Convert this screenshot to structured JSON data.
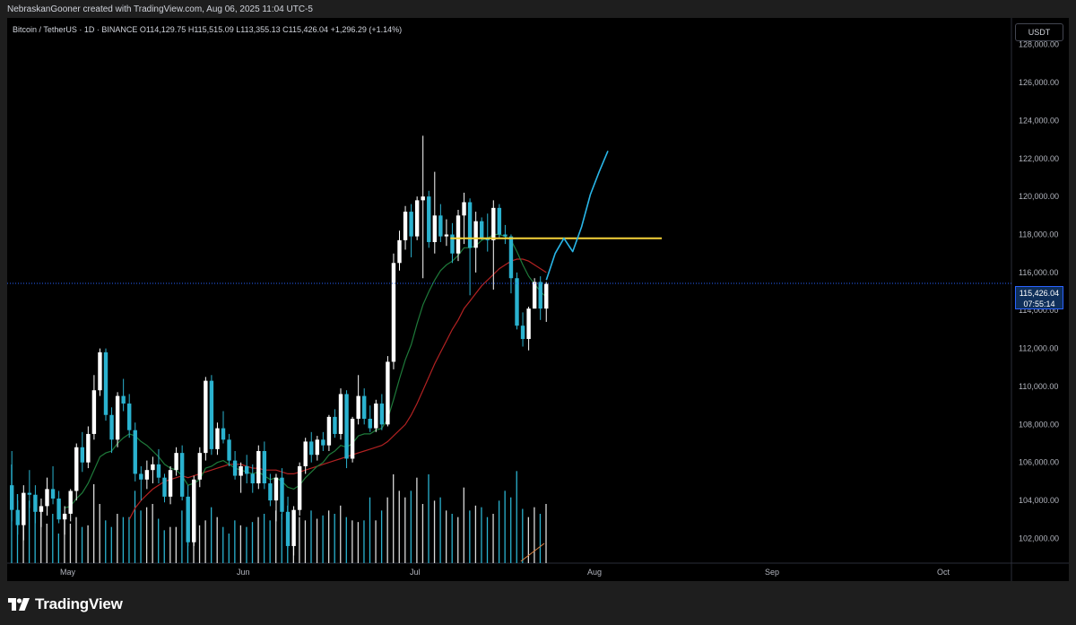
{
  "caption": "NebraskanGooner created with TradingView.com, Aug 06, 2025 11:04 UTC-5",
  "symbol_bar": {
    "title": "Bitcoin / TetherUS · 1D · BINANCE",
    "open_label": "O",
    "open": "114,129.75",
    "high_label": "H",
    "high": "115,515.09",
    "low_label": "L",
    "low": "113,355.13",
    "close_label": "C",
    "close": "115,426.04",
    "change": "+1,296.29 (+1.14%)"
  },
  "currency_button": "USDT",
  "current_price": {
    "price": "115,426.04",
    "countdown": "07:55:14"
  },
  "branding": "TradingView",
  "colors": {
    "up": "#ffffff",
    "down": "#2ab2cf",
    "ma_fast": "#1e7a3a",
    "ma_slow": "#b22222",
    "level": "#f5d33a",
    "projection": "#29b6e8",
    "price_line": "#2962ff",
    "volume_up": "#d9d9d9",
    "volume_down": "#2ab2cf"
  },
  "chart_data": {
    "type": "candlestick",
    "price_axis": {
      "ylim": [
        100700,
        129400
      ],
      "ticks": [
        "128,000.00",
        "126,000.00",
        "124,000.00",
        "122,000.00",
        "120,000.00",
        "118,000.00",
        "116,000.00",
        "114,000.00",
        "112,000.00",
        "110,000.00",
        "108,000.00",
        "106,000.00",
        "104,000.00",
        "102,000.00"
      ]
    },
    "time_axis": {
      "labels": [
        "May",
        "Jun",
        "Jul",
        "Aug",
        "Sep",
        "Oct"
      ]
    },
    "candles": [
      [
        104800,
        106600,
        102900,
        103500
      ],
      [
        103500,
        104000,
        102200,
        102700
      ],
      [
        102700,
        104800,
        101900,
        104400
      ],
      [
        104400,
        105600,
        103600,
        104300
      ],
      [
        104300,
        104800,
        102800,
        103400
      ],
      [
        103400,
        104100,
        102600,
        103700
      ],
      [
        103700,
        105200,
        103200,
        104600
      ],
      [
        104600,
        105800,
        103800,
        104100
      ],
      [
        104100,
        104500,
        102800,
        103000
      ],
      [
        103000,
        103700,
        102200,
        103300
      ],
      [
        103300,
        104600,
        102900,
        104500
      ],
      [
        104500,
        107000,
        104000,
        106800
      ],
      [
        106800,
        107600,
        105500,
        106000
      ],
      [
        106000,
        107900,
        105700,
        107500
      ],
      [
        107500,
        110600,
        107200,
        109800
      ],
      [
        109800,
        112000,
        109500,
        111800
      ],
      [
        111800,
        112000,
        108200,
        108500
      ],
      [
        108500,
        108900,
        106500,
        107200
      ],
      [
        107200,
        109700,
        106800,
        109500
      ],
      [
        109500,
        110400,
        108700,
        109100
      ],
      [
        109100,
        109600,
        107300,
        107700
      ],
      [
        107700,
        108100,
        105000,
        105400
      ],
      [
        105400,
        105800,
        104000,
        105100
      ],
      [
        105100,
        106100,
        104600,
        105600
      ],
      [
        105600,
        106300,
        104900,
        105900
      ],
      [
        105900,
        106700,
        104900,
        105200
      ],
      [
        105200,
        105400,
        103900,
        104200
      ],
      [
        104200,
        105800,
        103800,
        105600
      ],
      [
        105600,
        106800,
        105300,
        106500
      ],
      [
        106500,
        106900,
        104000,
        104200
      ],
      [
        104200,
        104800,
        101600,
        101800
      ],
      [
        101800,
        105300,
        101600,
        105100
      ],
      [
        105100,
        106800,
        104700,
        106500
      ],
      [
        106500,
        110500,
        106100,
        110300
      ],
      [
        110300,
        110600,
        106400,
        106700
      ],
      [
        106700,
        108100,
        106400,
        107800
      ],
      [
        107800,
        108700,
        107000,
        107200
      ],
      [
        107200,
        107500,
        105800,
        106100
      ],
      [
        106100,
        106600,
        105100,
        105300
      ],
      [
        105300,
        106000,
        104400,
        105800
      ],
      [
        105800,
        106400,
        104900,
        105400
      ],
      [
        105400,
        105900,
        104400,
        104900
      ],
      [
        104900,
        106900,
        104600,
        106600
      ],
      [
        106600,
        107100,
        104600,
        104900
      ],
      [
        104900,
        105400,
        103700,
        104000
      ],
      [
        104000,
        105400,
        102900,
        105200
      ],
      [
        105200,
        105700,
        103000,
        103400
      ],
      [
        103400,
        104200,
        101500,
        101600
      ],
      [
        101600,
        103700,
        101100,
        103500
      ],
      [
        103500,
        106000,
        103200,
        105800
      ],
      [
        105800,
        107300,
        105400,
        107100
      ],
      [
        107100,
        107600,
        106000,
        106400
      ],
      [
        106400,
        107400,
        106100,
        107200
      ],
      [
        107200,
        107600,
        106600,
        106900
      ],
      [
        106900,
        108500,
        106600,
        108400
      ],
      [
        108400,
        108800,
        107300,
        107500
      ],
      [
        107500,
        109900,
        107200,
        109600
      ],
      [
        109600,
        109800,
        105700,
        106200
      ],
      [
        106200,
        108400,
        106000,
        108300
      ],
      [
        108300,
        110600,
        108000,
        109500
      ],
      [
        109500,
        109900,
        108000,
        108300
      ],
      [
        108300,
        109000,
        107600,
        107800
      ],
      [
        107800,
        109300,
        107600,
        109100
      ],
      [
        109100,
        109600,
        107700,
        108000
      ],
      [
        108000,
        111600,
        107900,
        111300
      ],
      [
        111300,
        117000,
        110900,
        116500
      ],
      [
        116500,
        118200,
        116100,
        117700
      ],
      [
        117700,
        119500,
        117200,
        119200
      ],
      [
        119200,
        119600,
        116800,
        117900
      ],
      [
        117900,
        120000,
        117700,
        119800
      ],
      [
        119800,
        123200,
        115700,
        120000
      ],
      [
        120000,
        120300,
        117300,
        117600
      ],
      [
        117600,
        121300,
        117000,
        119000
      ],
      [
        119000,
        119600,
        117600,
        117900
      ],
      [
        117900,
        118800,
        117400,
        118000
      ],
      [
        118000,
        118600,
        116500,
        117000
      ],
      [
        117000,
        119300,
        116600,
        119000
      ],
      [
        119000,
        120200,
        117500,
        119700
      ],
      [
        119700,
        119900,
        114800,
        117300
      ],
      [
        117300,
        119200,
        116000,
        118700
      ],
      [
        118700,
        118900,
        117700,
        117800
      ],
      [
        117800,
        119100,
        117100,
        117700
      ],
      [
        117700,
        119800,
        115100,
        119400
      ],
      [
        119400,
        119600,
        117800,
        118000
      ],
      [
        118000,
        118500,
        117500,
        117900
      ],
      [
        117900,
        118000,
        114900,
        115700
      ],
      [
        115700,
        116000,
        113000,
        113200
      ],
      [
        113200,
        113900,
        112100,
        112500
      ],
      [
        112500,
        114200,
        111900,
        114100
      ],
      [
        114100,
        115700,
        114100,
        115500
      ],
      [
        115500,
        115800,
        113500,
        114100
      ],
      [
        114100,
        115500,
        113400,
        115400
      ]
    ],
    "volume": [
      60,
      42,
      32,
      38,
      35,
      34,
      24,
      30,
      18,
      30,
      24,
      28,
      22,
      23,
      48,
      36,
      26,
      22,
      30,
      28,
      28,
      44,
      32,
      34,
      36,
      27,
      20,
      22,
      22,
      32,
      22,
      32,
      23,
      26,
      34,
      28,
      22,
      18,
      26,
      23,
      22,
      25,
      28,
      30,
      26,
      32,
      30,
      35,
      26,
      28,
      26,
      32,
      27,
      29,
      32,
      30,
      35,
      28,
      26,
      25,
      26,
      40,
      26,
      32,
      40,
      54,
      44,
      40,
      44,
      52,
      36,
      54,
      38,
      40,
      32,
      30,
      28,
      46,
      32,
      35,
      34,
      28,
      30,
      38,
      44,
      40,
      56,
      33,
      28,
      34,
      30,
      36
    ],
    "ma_fast": [
      null,
      null,
      null,
      null,
      null,
      null,
      null,
      null,
      null,
      103600,
      103700,
      104100,
      104400,
      104900,
      105600,
      106300,
      106500,
      106600,
      107000,
      107300,
      107500,
      107400,
      107100,
      106900,
      106600,
      106300,
      105900,
      105700,
      105600,
      105300,
      104800,
      104900,
      105100,
      105700,
      105800,
      106000,
      106100,
      105900,
      105700,
      105600,
      105500,
      105400,
      105500,
      105300,
      105100,
      105200,
      105000,
      104700,
      104600,
      104800,
      105200,
      105500,
      105800,
      106000,
      106400,
      106600,
      106900,
      106800,
      107000,
      107400,
      107500,
      107500,
      107700,
      107800,
      108300,
      109300,
      110400,
      111400,
      112200,
      113300,
      114300,
      115000,
      115600,
      116100,
      116400,
      116600,
      116900,
      117300,
      117300,
      117400,
      117700,
      117800,
      118000,
      118000,
      117900,
      117700,
      117100,
      116400,
      115800,
      115400,
      115000,
      114700
    ],
    "ma_slow": [
      null,
      null,
      null,
      null,
      null,
      null,
      null,
      null,
      null,
      null,
      null,
      null,
      null,
      null,
      null,
      null,
      null,
      null,
      null,
      null,
      103000,
      103600,
      104000,
      104300,
      104600,
      104800,
      105000,
      105100,
      105200,
      105300,
      105200,
      105300,
      105400,
      105500,
      105600,
      105700,
      105800,
      105900,
      105900,
      105900,
      105800,
      105700,
      105700,
      105600,
      105600,
      105600,
      105500,
      105400,
      105400,
      105500,
      105600,
      105700,
      105800,
      105900,
      106000,
      106100,
      106200,
      106300,
      106400,
      106500,
      106600,
      106700,
      106800,
      106900,
      107100,
      107400,
      107700,
      108000,
      108500,
      109100,
      109800,
      110500,
      111200,
      111800,
      112400,
      113000,
      113500,
      114100,
      114500,
      114900,
      115300,
      115600,
      115900,
      116200,
      116400,
      116600,
      116700,
      116700,
      116600,
      116400,
      116200,
      116000
    ],
    "horizontal_level": 117800,
    "projection_path": [
      [
        91,
        115600
      ],
      [
        92.5,
        117000
      ],
      [
        94,
        117800
      ],
      [
        95.5,
        117100
      ],
      [
        97,
        118400
      ],
      [
        98.5,
        120100
      ],
      [
        100,
        121300
      ],
      [
        101.5,
        122400
      ]
    ],
    "current_price_value": 115426.04
  }
}
